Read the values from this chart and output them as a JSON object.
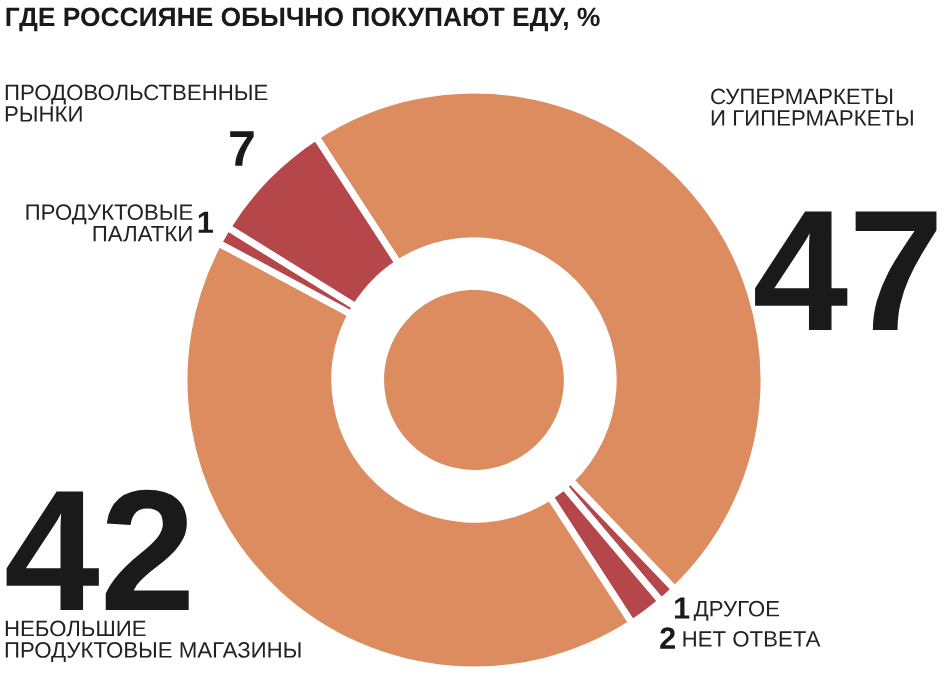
{
  "chart_data": {
    "type": "donut",
    "title": "ГДЕ РОССИЯНЕ ОБЫЧНО ПОКУПАЮТ ЕДУ, %",
    "categories": [
      "СУПЕРМАРКЕТЫ\nИ ГИПЕРМАРКЕТЫ",
      "ДРУГОЕ",
      "НЕТ ОТВЕТА",
      "НЕБОЛЬШИЕ\nПРОДУКТОВЫЕ МАГАЗИНЫ",
      "ПРОДУКТОВЫЕ\nПАЛАТКИ",
      "ПРОДОВОЛЬСТВЕННЫЕ\nРЫНКИ"
    ],
    "values": [
      47,
      1,
      2,
      42,
      1,
      7
    ],
    "colors": [
      "#dc8c5e",
      "#b5474a",
      "#b5474a",
      "#dc8c5e",
      "#b5474a",
      "#b5474a"
    ],
    "data_labels": true,
    "legend": false
  }
}
